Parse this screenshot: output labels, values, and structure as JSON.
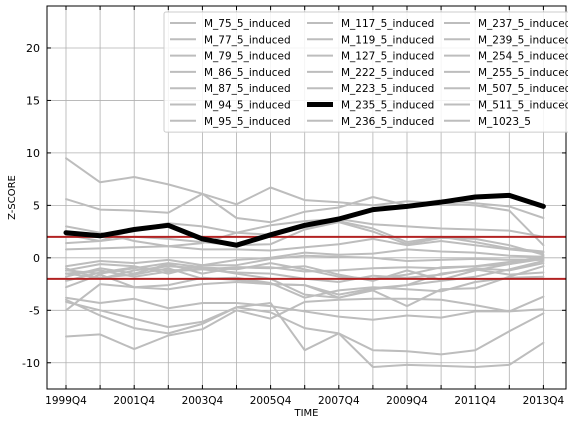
{
  "colors": {
    "background_line": "#bdbdbd",
    "highlight": "#000000",
    "threshold": "#b22222",
    "grid": "#b0b0b0",
    "axis": "#000000"
  },
  "chart_data": {
    "type": "line",
    "xlabel": "TIME",
    "ylabel": "Z-SCORE",
    "ylim": [
      -12.5,
      24
    ],
    "yticks": [
      -10,
      -5,
      0,
      5,
      10,
      15,
      20
    ],
    "xtick_labels": [
      "1999Q4",
      "2001Q4",
      "2003Q4",
      "2005Q4",
      "2007Q4",
      "2009Q4",
      "2011Q4",
      "2013Q4"
    ],
    "categories": [
      "1999Q4",
      "2000Q4",
      "2001Q4",
      "2002Q4",
      "2003Q4",
      "2004Q4",
      "2005Q4",
      "2006Q4",
      "2007Q4",
      "2008Q4",
      "2009Q4",
      "2010Q4",
      "2011Q4",
      "2012Q4",
      "2013Q4"
    ],
    "thresholds": [
      2,
      -2
    ],
    "grid": true,
    "legend_placement": "top-right",
    "legend_columns": 3,
    "highlight_series": "M_235_5_induced",
    "series": [
      {
        "name": "M_75_5_induced",
        "values": [
          9.5,
          7.2,
          7.7,
          7.0,
          6.1,
          5.1,
          6.7,
          5.5,
          5.3,
          5.0,
          5.4,
          5.2,
          5.0,
          4.5,
          1.2
        ]
      },
      {
        "name": "M_77_5_induced",
        "values": [
          5.6,
          4.6,
          4.5,
          4.3,
          6.1,
          3.8,
          3.4,
          4.4,
          4.8,
          5.8,
          5.0,
          5.5,
          5.2,
          4.9,
          3.8
        ]
      },
      {
        "name": "M_79_5_induced",
        "values": [
          3.0,
          2.4,
          1.6,
          1.1,
          1.4,
          2.4,
          3.1,
          3.5,
          3.7,
          3.2,
          3.0,
          2.8,
          2.7,
          2.6,
          2.0
        ]
      },
      {
        "name": "M_86_5_induced",
        "values": [
          2.2,
          1.6,
          2.7,
          3.3,
          3.0,
          2.4,
          2.2,
          2.9,
          3.5,
          2.8,
          1.5,
          2.0,
          1.5,
          0.9,
          0.6
        ]
      },
      {
        "name": "M_87_5_induced",
        "values": [
          1.4,
          1.6,
          2.0,
          1.8,
          1.5,
          1.2,
          1.3,
          2.7,
          3.4,
          2.5,
          1.3,
          1.9,
          1.8,
          1.2,
          0.3
        ]
      },
      {
        "name": "M_94_5_induced",
        "values": [
          0.8,
          0.9,
          1.0,
          1.1,
          0.8,
          0.8,
          0.7,
          1.0,
          1.3,
          1.8,
          1.2,
          1.6,
          1.2,
          0.8,
          0.5
        ]
      },
      {
        "name": "M_95_5_induced",
        "values": [
          -0.8,
          -0.3,
          -0.5,
          -0.2,
          -0.7,
          -0.2,
          0.0,
          0.5,
          0.3,
          0.4,
          0.8,
          0.6,
          0.5,
          0.2,
          0.1
        ]
      },
      {
        "name": "M_117_5_induced",
        "values": [
          -1.2,
          -0.6,
          -0.8,
          -1.5,
          -0.7,
          -0.7,
          -0.1,
          0.2,
          0.1,
          0.0,
          -0.3,
          -0.2,
          -0.1,
          -0.2,
          -0.2
        ]
      },
      {
        "name": "M_119_5_induced",
        "values": [
          -1.5,
          -1.2,
          -1.8,
          -1.3,
          -1.1,
          -0.9,
          -0.9,
          -1.3,
          -1.2,
          -1.0,
          -0.9,
          -1.0,
          -0.8,
          -0.4,
          0.0
        ]
      },
      {
        "name": "M_127_5_induced",
        "values": [
          -1.8,
          -1.0,
          -1.5,
          -0.6,
          -1.5,
          -0.9,
          -1.0,
          -0.8,
          -1.6,
          -2.2,
          -1.2,
          -2.1,
          -1.2,
          -0.6,
          0.2
        ]
      },
      {
        "name": "M_222_5_induced",
        "values": [
          -2.2,
          -1.4,
          -0.9,
          -1.2,
          -1.1,
          -1.4,
          -1.5,
          -2.0,
          -2.3,
          -1.7,
          -1.9,
          -1.6,
          -1.0,
          -1.2,
          -0.5
        ]
      },
      {
        "name": "M_223_5_induced",
        "values": [
          -2.8,
          -1.6,
          -2.8,
          -2.6,
          -1.9,
          -2.1,
          -2.5,
          -2.6,
          -3.5,
          -2.9,
          -2.6,
          -1.5,
          -1.1,
          -1.6,
          -1.4
        ]
      },
      {
        "name": "M_235_5_induced",
        "values": [
          2.4,
          2.1,
          2.7,
          3.1,
          1.8,
          1.2,
          2.2,
          3.1,
          3.7,
          4.6,
          4.9,
          5.3,
          5.8,
          5.95,
          4.9
        ]
      },
      {
        "name": "M_236_5_induced",
        "values": [
          -1.5,
          -1.9,
          -1.6,
          -1.0,
          -2.0,
          -1.9,
          -2.4,
          -3.8,
          -3.1,
          -2.8,
          -3.0,
          -3.2,
          -2.3,
          -1.9,
          -1.8
        ]
      },
      {
        "name": "M_237_5_induced",
        "values": [
          -3.8,
          -4.3,
          -3.9,
          -4.8,
          -4.3,
          -4.3,
          -4.6,
          -5.1,
          -5.6,
          -5.9,
          -5.5,
          -5.7,
          -5.1,
          -5.1,
          -3.7
        ]
      },
      {
        "name": "M_239_5_induced",
        "values": [
          -4.2,
          -5.0,
          -5.8,
          -6.6,
          -6.1,
          -4.7,
          -5.2,
          -6.7,
          -7.2,
          -8.8,
          -8.9,
          -9.2,
          -8.8,
          -7.0,
          -5.3
        ]
      },
      {
        "name": "M_254_5_induced",
        "values": [
          -4.0,
          -5.5,
          -6.7,
          -7.2,
          -6.3,
          -4.7,
          -4.3,
          -8.8,
          -7.2,
          -10.4,
          -10.2,
          -10.3,
          -10.4,
          -10.2,
          -8.1
        ]
      },
      {
        "name": "M_255_5_induced",
        "values": [
          -7.5,
          -7.3,
          -8.7,
          -7.4,
          -6.8,
          -5.0,
          -5.8,
          -4.2,
          -4.0,
          -3.9,
          -3.9,
          -4.0,
          -4.5,
          -5.1,
          -4.9
        ]
      },
      {
        "name": "M_507_5_induced",
        "values": [
          -5.0,
          -2.5,
          -2.8,
          -3.0,
          -2.5,
          -2.3,
          -2.5,
          -2.6,
          -3.8,
          -3.1,
          -4.6,
          -3.0,
          -2.9,
          -1.8,
          -0.8
        ]
      },
      {
        "name": "M_511_5_induced",
        "values": [
          -1.0,
          -2.0,
          -1.2,
          -0.8,
          -1.0,
          -1.5,
          -2.0,
          -3.5,
          -3.8,
          -3.0,
          -2.6,
          -2.2,
          -1.8,
          -1.1,
          -0.3
        ]
      },
      {
        "name": "M_1023_5",
        "values": [
          -1.2,
          -1.5,
          -1.0,
          -0.5,
          -0.9,
          -1.1,
          -0.5,
          -1.1,
          -1.8,
          -2.0,
          -1.6,
          -0.9,
          -0.8,
          -0.6,
          -0.1
        ]
      }
    ]
  }
}
